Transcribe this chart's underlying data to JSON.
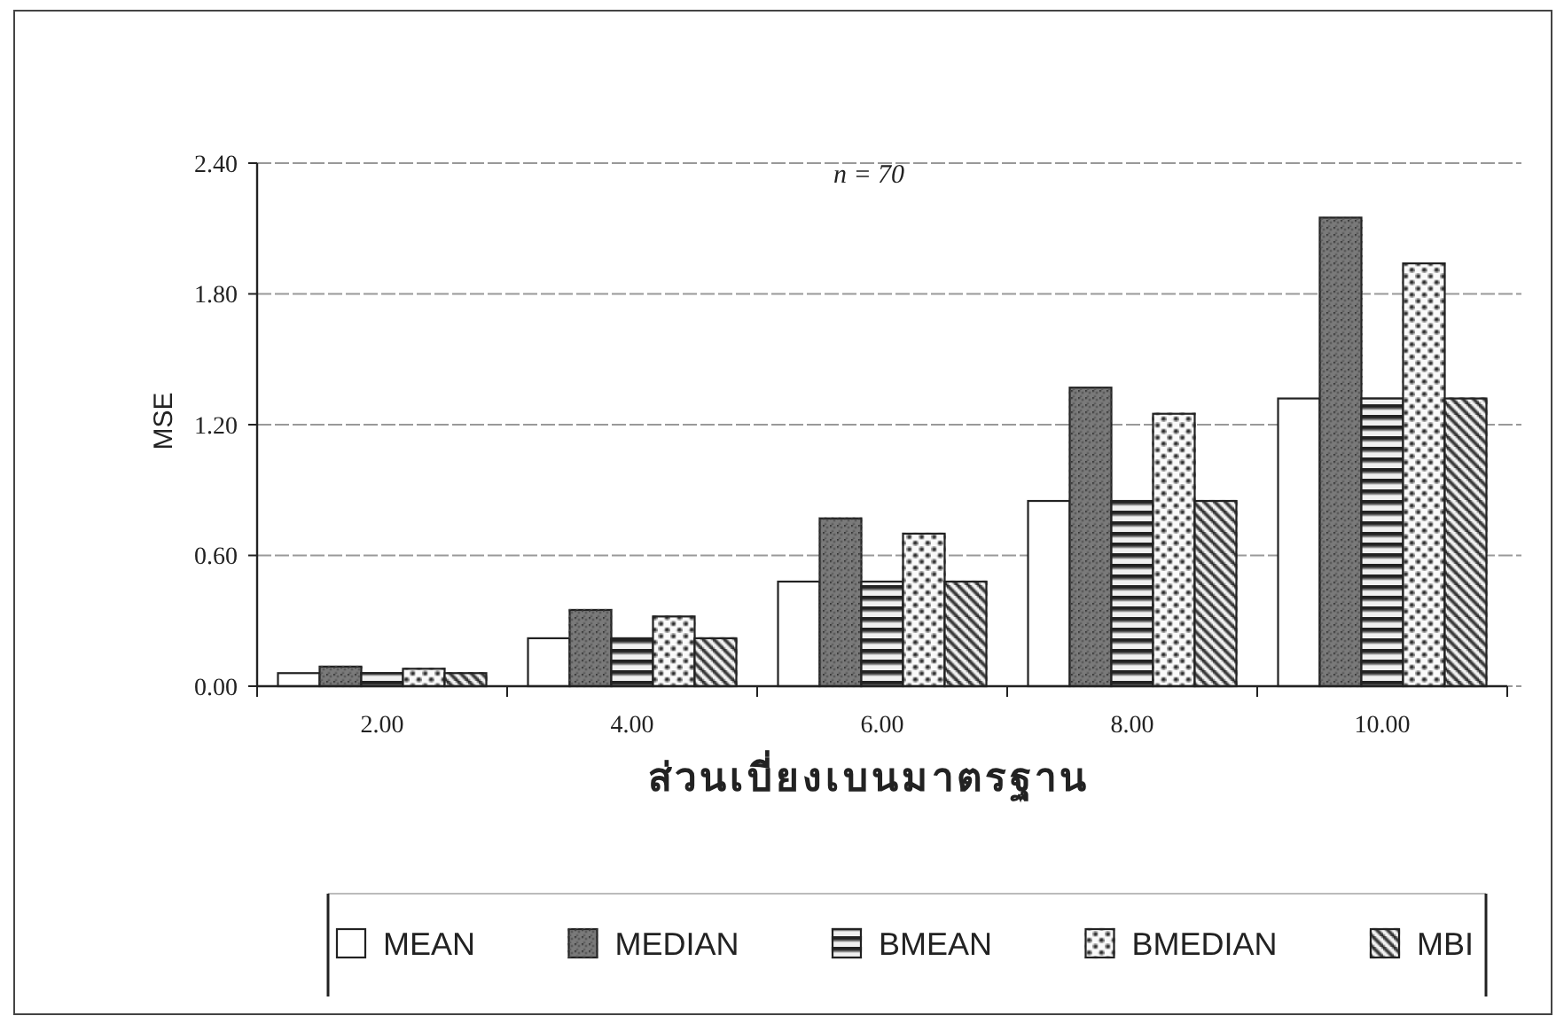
{
  "chart_data": {
    "type": "bar",
    "title": "n = 70",
    "xlabel": "ส่วนเบี่ยงเบนมาตรฐาน",
    "ylabel": "MSE",
    "categories": [
      "2.00",
      "4.00",
      "6.00",
      "8.00",
      "10.00"
    ],
    "series": [
      {
        "name": "MEAN",
        "color": "#ffffff",
        "values": [
          0.06,
          0.22,
          0.48,
          0.85,
          1.32
        ]
      },
      {
        "name": "MEDIAN",
        "color": "#7a7a7a",
        "values": [
          0.09,
          0.35,
          0.77,
          1.37,
          2.15
        ]
      },
      {
        "name": "BMEAN",
        "color": "#f0f0f0",
        "values": [
          0.06,
          0.22,
          0.48,
          0.85,
          1.32
        ]
      },
      {
        "name": "BMEDIAN",
        "color": "#fafafa",
        "values": [
          0.08,
          0.32,
          0.7,
          1.25,
          1.94
        ]
      },
      {
        "name": "MBI",
        "color": "#f5f5f5",
        "values": [
          0.06,
          0.22,
          0.48,
          0.85,
          1.32
        ]
      }
    ],
    "ylim": [
      0,
      2.4
    ],
    "yticks": [
      {
        "value": 0,
        "label": "0.00"
      },
      {
        "value": 0.6,
        "label": "0.60"
      },
      {
        "value": 1.2,
        "label": "1.20"
      },
      {
        "value": 1.8,
        "label": "1.80"
      },
      {
        "value": 2.4,
        "label": "2.40"
      }
    ],
    "grid": "y",
    "legend": "bottom"
  }
}
